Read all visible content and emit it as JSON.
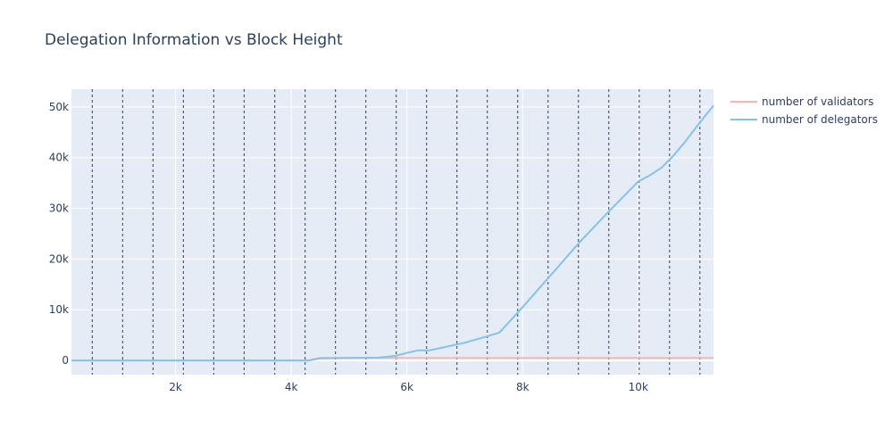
{
  "chart_data": {
    "type": "line",
    "title": "Delegation Information vs Block Height",
    "xlabel": "",
    "ylabel": "",
    "xlim": [
      200,
      11300
    ],
    "ylim": [
      -2800,
      53500
    ],
    "x_ticks": [
      {
        "value": 2000,
        "label": "2k"
      },
      {
        "value": 4000,
        "label": "4k"
      },
      {
        "value": 6000,
        "label": "6k"
      },
      {
        "value": 8000,
        "label": "8k"
      },
      {
        "value": 10000,
        "label": "10k"
      }
    ],
    "y_ticks": [
      {
        "value": 0,
        "label": "0"
      },
      {
        "value": 10000,
        "label": "10k"
      },
      {
        "value": 20000,
        "label": "20k"
      },
      {
        "value": 30000,
        "label": "30k"
      },
      {
        "value": 40000,
        "label": "40k"
      },
      {
        "value": 50000,
        "label": "50k"
      }
    ],
    "grid": true,
    "legend_position": "top-right",
    "vertical_dashed_lines_x": [
      560,
      1085,
      1610,
      2135,
      2660,
      3185,
      3715,
      4240,
      4765,
      5290,
      5815,
      6340,
      6865,
      7390,
      7915,
      8440,
      8965,
      9490,
      10015,
      10540,
      11065
    ],
    "series": [
      {
        "name": "number of validators",
        "color": "#f4b8b0",
        "x": [
          200,
          4000,
          4300,
          4500,
          6000,
          8000,
          10000,
          11300
        ],
        "y": [
          0,
          0,
          0,
          500,
          500,
          500,
          500,
          500
        ]
      },
      {
        "name": "number of delegators",
        "color": "#85c1e9",
        "x": [
          200,
          4000,
          4300,
          4500,
          5000,
          5500,
          5800,
          6000,
          6200,
          6400,
          6600,
          7000,
          7400,
          7600,
          7800,
          8000,
          8500,
          9000,
          9500,
          10000,
          10200,
          10400,
          10600,
          10800,
          11000,
          11300
        ],
        "y": [
          0,
          0,
          0,
          400,
          500,
          550,
          900,
          1500,
          2000,
          2000,
          2500,
          3500,
          4800,
          5500,
          8000,
          10500,
          17000,
          23500,
          29500,
          35300,
          36500,
          38000,
          40300,
          43000,
          46000,
          50300
        ]
      }
    ]
  }
}
